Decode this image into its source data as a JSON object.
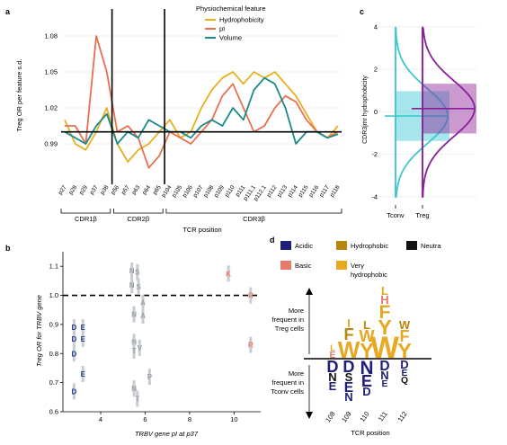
{
  "panels": {
    "a": "a",
    "b": "b",
    "c": "c",
    "d": "d"
  },
  "colors": {
    "hydrophobicity": "#e8b020",
    "pI": "#e87050",
    "volume": "#1a8a8a",
    "tconv": "#3cc8d0",
    "treg": "#8a1f9a",
    "acidic": "#1f1f7a",
    "basic": "#e87a6a",
    "hydrophobic": "#b8860b",
    "very_hydrophobic": "#e8a820",
    "neutral": "#111111",
    "point_gray": "#9aa0a8",
    "point_blue": "#1f3a8a"
  },
  "chart_data": [
    {
      "id": "a",
      "type": "line",
      "title": "",
      "ylabel": "Treg OR per feature s.d.",
      "xlabel": "TCR position",
      "ylim": [
        0.96,
        1.095
      ],
      "yticks": [
        0.99,
        1.02,
        1.05,
        1.08
      ],
      "baseline": 1.0,
      "vlines_after": [
        "p38",
        "p65"
      ],
      "x": [
        "p27",
        "p28",
        "p29",
        "p37",
        "p38",
        "p56",
        "p57",
        "p63",
        "p64",
        "p65",
        "p104",
        "p105",
        "p106",
        "p107",
        "p108",
        "p109",
        "p110",
        "p111",
        "p111.1",
        "p112.1",
        "p112",
        "p113",
        "p114",
        "p115",
        "p116",
        "p117",
        "p118"
      ],
      "legend_title": "Physiochemical feature",
      "series": [
        {
          "name": "Hydrophobicity",
          "color_key": "hydrophobicity",
          "values": [
            1.01,
            0.99,
            0.985,
            1.0,
            1.02,
            0.99,
            0.975,
            0.985,
            0.99,
            1.0,
            1.01,
            0.995,
            1.0,
            1.02,
            1.035,
            1.045,
            1.05,
            1.04,
            1.05,
            1.045,
            1.05,
            1.04,
            1.03,
            1.015,
            1.0,
            0.995,
            1.005
          ]
        },
        {
          "name": "pI",
          "color_key": "pI",
          "values": [
            1.005,
            1.005,
            0.99,
            1.08,
            1.05,
            1.0,
            1.005,
            0.995,
            0.97,
            0.98,
            1.0,
            0.995,
            0.99,
            1.0,
            1.01,
            1.03,
            1.04,
            1.02,
            1.0,
            1.005,
            1.02,
            1.03,
            1.025,
            1.01,
            1.0,
            0.995,
            1.0
          ]
        },
        {
          "name": "Volume",
          "color_key": "volume",
          "values": [
            1.0,
            0.995,
            0.99,
            1.005,
            1.015,
            0.99,
            1.0,
            0.995,
            1.01,
            1.005,
            1.0,
            1.0,
            0.995,
            1.005,
            1.01,
            1.005,
            1.02,
            1.01,
            1.035,
            1.045,
            1.04,
            1.02,
            0.99,
            1.0,
            1.0,
            0.995,
            0.998
          ]
        }
      ],
      "groups": [
        {
          "label": "CDR1β",
          "from": "p27",
          "to": "p38"
        },
        {
          "label": "CDR2β",
          "from": "p56",
          "to": "p65"
        },
        {
          "label": "CDR3β",
          "from": "p104",
          "to": "p118"
        }
      ]
    },
    {
      "id": "b",
      "type": "scatter",
      "title": "",
      "xlabel": "TRBV gene pI at p37",
      "ylabel": "Treg OR for TRBV gene",
      "xlim": [
        2.3,
        11.2
      ],
      "ylim": [
        0.6,
        1.15
      ],
      "xticks": [
        4,
        6,
        8,
        10
      ],
      "yticks": [
        0.6,
        0.7,
        0.8,
        0.9,
        1.0,
        1.1
      ],
      "baseline": 1.0,
      "points": [
        {
          "x": 2.8,
          "y": 0.89,
          "label": "D",
          "color_key": "point_blue"
        },
        {
          "x": 3.2,
          "y": 0.89,
          "label": "E",
          "color_key": "point_blue"
        },
        {
          "x": 2.8,
          "y": 0.85,
          "label": "D",
          "color_key": "point_blue"
        },
        {
          "x": 3.2,
          "y": 0.85,
          "label": "E",
          "color_key": "point_blue"
        },
        {
          "x": 2.8,
          "y": 0.8,
          "label": "D",
          "color_key": "point_blue"
        },
        {
          "x": 3.2,
          "y": 0.73,
          "label": "E",
          "color_key": "point_blue"
        },
        {
          "x": 2.8,
          "y": 0.67,
          "label": "D",
          "color_key": "point_blue"
        },
        {
          "x": 5.4,
          "y": 1.085,
          "label": "N",
          "color_key": "point_gray"
        },
        {
          "x": 5.65,
          "y": 1.08,
          "label": "S",
          "color_key": "point_gray"
        },
        {
          "x": 5.4,
          "y": 1.035,
          "label": "N",
          "color_key": "point_gray"
        },
        {
          "x": 5.7,
          "y": 1.03,
          "label": "S",
          "color_key": "point_gray"
        },
        {
          "x": 5.9,
          "y": 0.975,
          "label": "A",
          "color_key": "point_gray"
        },
        {
          "x": 5.5,
          "y": 0.935,
          "label": "N",
          "color_key": "point_gray"
        },
        {
          "x": 5.9,
          "y": 0.93,
          "label": "A",
          "color_key": "point_gray"
        },
        {
          "x": 5.5,
          "y": 0.84,
          "label": "N",
          "color_key": "point_gray"
        },
        {
          "x": 5.5,
          "y": 0.81,
          "label": "T",
          "color_key": "point_gray"
        },
        {
          "x": 5.75,
          "y": 0.82,
          "label": "V",
          "color_key": "point_gray"
        },
        {
          "x": 6.2,
          "y": 0.72,
          "label": "P",
          "color_key": "point_gray"
        },
        {
          "x": 5.5,
          "y": 0.68,
          "label": "N",
          "color_key": "point_gray"
        },
        {
          "x": 5.65,
          "y": 0.645,
          "label": "T",
          "color_key": "point_gray"
        },
        {
          "x": 9.75,
          "y": 1.075,
          "label": "K",
          "color_key": "basic"
        },
        {
          "x": 10.75,
          "y": 1.0,
          "label": "R",
          "color_key": "basic"
        },
        {
          "x": 10.75,
          "y": 0.83,
          "label": "R",
          "color_key": "basic"
        }
      ]
    },
    {
      "id": "c",
      "type": "area",
      "title": "",
      "ylabel": "CDR3jmr hydrophobicity",
      "ylim": [
        -4.3,
        4.5
      ],
      "yticks": [
        -4,
        -2,
        0,
        2,
        4
      ],
      "categories": [
        "Tconv",
        "Treg"
      ],
      "series": [
        {
          "name": "Tconv",
          "color_key": "tconv",
          "center": -0.2,
          "width": 1.3
        },
        {
          "name": "Treg",
          "color_key": "treg",
          "center": 0.15,
          "width": 1.3
        }
      ]
    }
  ],
  "legend_d": {
    "items": [
      {
        "label": "Acidic",
        "color_key": "acidic"
      },
      {
        "label": "Hydrophobic",
        "color_key": "hydrophobic"
      },
      {
        "label": "Neutra",
        "color_key": "neutral"
      },
      {
        "label": "Basic",
        "color_key": "basic"
      },
      {
        "label": "Very",
        "color_key": "very_hydrophobic"
      },
      {
        "label": "hydrophobic",
        "color_key": "very_hydrophobic"
      }
    ]
  },
  "panel_d": {
    "up_label": [
      "More",
      "frequent in",
      "Treg cells"
    ],
    "down_label": [
      "More",
      "frequent in",
      "Tconv cells"
    ],
    "xlabel": "TCR position",
    "positions": [
      "108",
      "109",
      "110",
      "111",
      "112"
    ]
  }
}
